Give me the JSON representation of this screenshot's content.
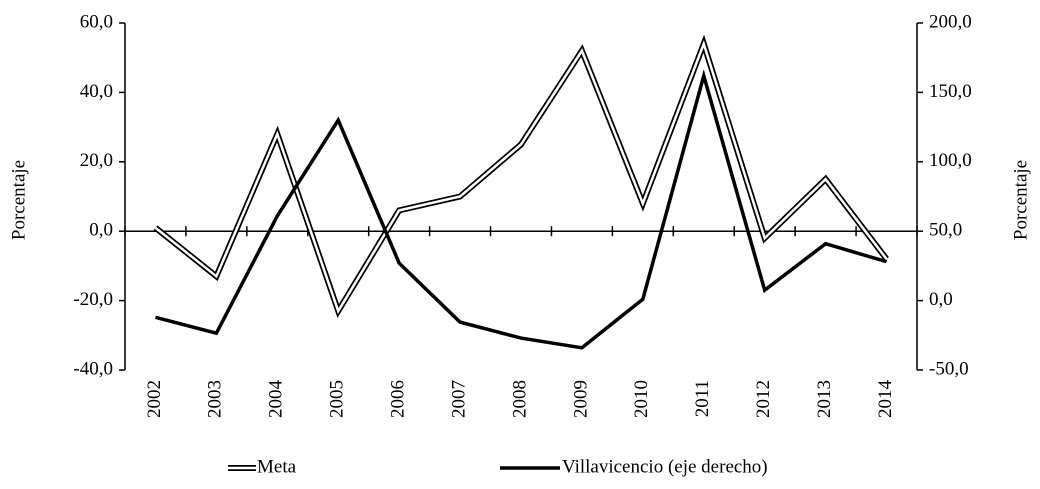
{
  "chart_data": {
    "type": "line",
    "categories": [
      "2002",
      "2003",
      "2004",
      "2005",
      "2006",
      "2007",
      "2008",
      "2009",
      "2010",
      "2011",
      "2012",
      "2013",
      "2014"
    ],
    "series": [
      {
        "name": "Meta",
        "color": "#000000",
        "values": [
          1,
          -13,
          28,
          -23,
          6,
          10,
          25,
          52,
          8,
          54,
          -2,
          15,
          -8
        ]
      },
      {
        "name": "Villavicencio (eje derecho)",
        "color": "#000000",
        "axis": "y2",
        "values": [
          -12,
          -23.5,
          61,
          130,
          27,
          -15.5,
          -27,
          -34,
          1,
          162,
          7.5,
          41,
          28
        ]
      }
    ],
    "ylabel": "Porcentaje",
    "y2label": "Porcentaje",
    "ylim": [
      -40,
      60
    ],
    "yticks": [
      {
        "value": -40,
        "label": "-40,0"
      },
      {
        "value": -20,
        "label": "-20,0"
      },
      {
        "value": 0,
        "label": "0,0"
      },
      {
        "value": 20,
        "label": "20,0"
      },
      {
        "value": 40,
        "label": "40,0"
      },
      {
        "value": 60,
        "label": "60,0"
      }
    ],
    "y2lim": [
      -50,
      200
    ],
    "y2ticks": [
      {
        "value": -50,
        "label": "-50,0"
      },
      {
        "value": 0,
        "label": "0,0"
      },
      {
        "value": 50,
        "label": "50,0"
      },
      {
        "value": 100,
        "label": "100,0"
      },
      {
        "value": 150,
        "label": "150,0"
      },
      {
        "value": 200,
        "label": "200,0"
      }
    ],
    "legend": "bottom"
  }
}
